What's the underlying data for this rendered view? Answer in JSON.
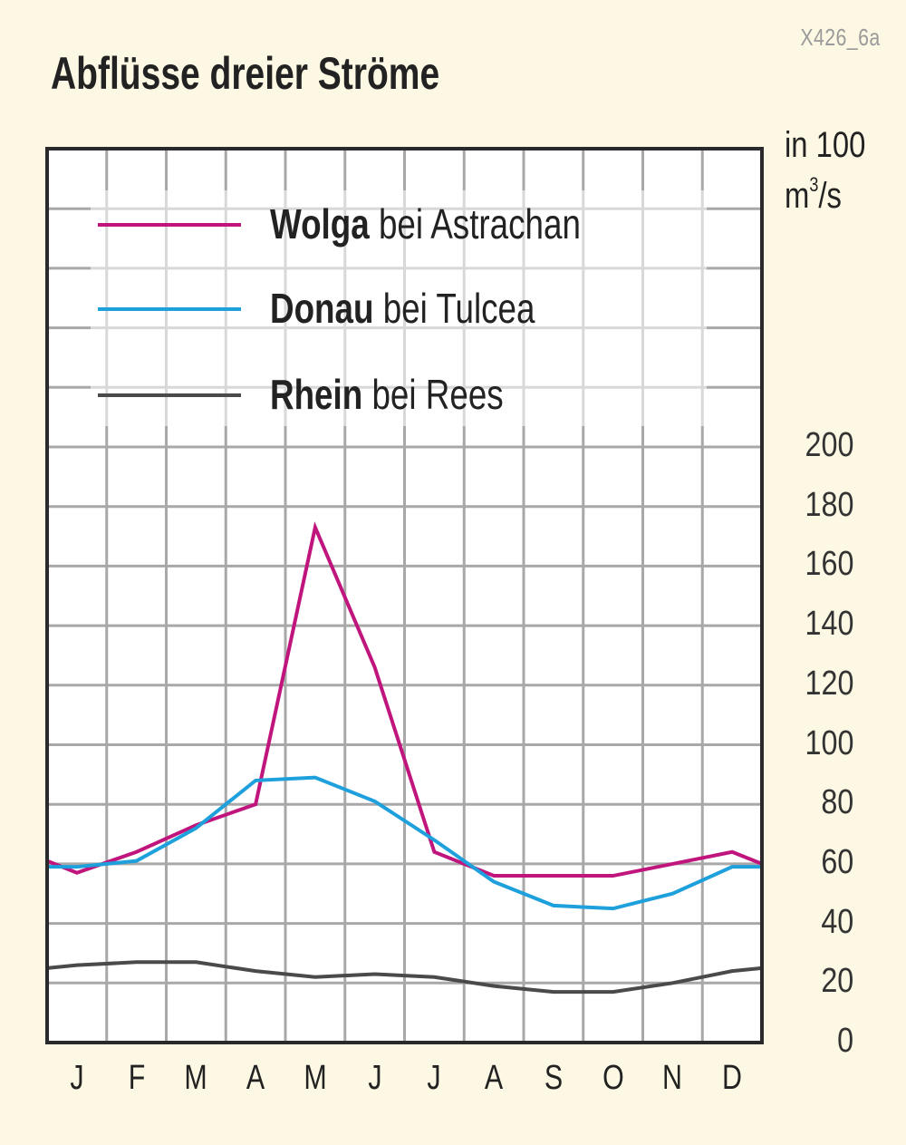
{
  "header": {
    "code": "X426_6a",
    "title": "Abflüsse dreier Ströme",
    "unit_line1": "in 100",
    "unit_line2_base": "m",
    "unit_line2_sup": "3",
    "unit_line2_rest": "/s"
  },
  "legend": [
    {
      "name": "Wolga",
      "suffix": " bei Astrachan",
      "color": "#c0157d"
    },
    {
      "name": "Donau",
      "suffix": " bei Tulcea",
      "color": "#1ea0dc"
    },
    {
      "name": "Rhein",
      "suffix": " bei Rees",
      "color": "#4a4a4a"
    }
  ],
  "chart_data": {
    "type": "line",
    "title": "Abflüsse dreier Ströme",
    "xlabel": "",
    "ylabel": "in 100 m³/s",
    "categories": [
      "J",
      "F",
      "M",
      "A",
      "M",
      "J",
      "J",
      "A",
      "S",
      "O",
      "N",
      "D"
    ],
    "ylim": [
      0,
      200
    ],
    "yticks": [
      0,
      20,
      40,
      60,
      80,
      100,
      120,
      140,
      160,
      180,
      200
    ],
    "grid": true,
    "legend_position": "top-left inside",
    "series": [
      {
        "name": "Wolga bei Astrachan",
        "color": "#c0157d",
        "values": [
          57,
          64,
          73,
          80,
          173,
          126,
          64,
          56,
          56,
          56,
          60,
          64
        ]
      },
      {
        "name": "Donau bei Tulcea",
        "color": "#1ea0dc",
        "values": [
          59,
          61,
          72,
          88,
          89,
          81,
          68,
          54,
          46,
          45,
          50,
          59
        ]
      },
      {
        "name": "Rhein bei Rees",
        "color": "#4a4a4a",
        "values": [
          26,
          27,
          27,
          24,
          22,
          23,
          22,
          19,
          17,
          17,
          20,
          24
        ]
      }
    ],
    "edge_values": {
      "Wolga bei Astrachan": [
        61,
        60
      ],
      "Donau bei Tulcea": [
        59,
        59
      ],
      "Rhein bei Rees": [
        25,
        25
      ]
    }
  }
}
